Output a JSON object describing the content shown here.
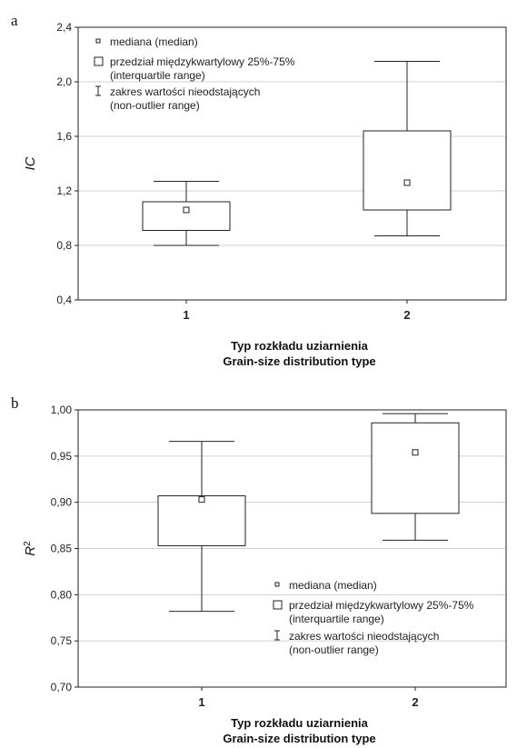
{
  "chart_data": [
    {
      "type": "box",
      "panel_label": "a",
      "ylabel": "IC",
      "xlabel_lines": [
        "Typ rozkładu uziarnienia",
        "Grain-size distribution type"
      ],
      "ylim": [
        0.4,
        2.4
      ],
      "yticks": [
        "0,4",
        "0,8",
        "1,2",
        "1,6",
        "2,0",
        "2,4"
      ],
      "ytick_values": [
        0.4,
        0.8,
        1.2,
        1.6,
        2.0,
        2.4
      ],
      "categories": [
        "1",
        "2"
      ],
      "grid": true,
      "legend_position": "top-left",
      "boxes": [
        {
          "category": "1",
          "median": 1.06,
          "q1": 0.91,
          "q3": 1.12,
          "whisker_low": 0.8,
          "whisker_high": 1.27
        },
        {
          "category": "2",
          "median": 1.26,
          "q1": 1.06,
          "q3": 1.64,
          "whisker_low": 0.87,
          "whisker_high": 2.15
        }
      ],
      "legend": [
        {
          "symbol": "median",
          "lines": [
            "mediana   (median)"
          ]
        },
        {
          "symbol": "box",
          "lines": [
            "przedział międzykwartylowy 25%-75%",
            "(interquartile range)"
          ]
        },
        {
          "symbol": "whisker",
          "lines": [
            "zakres wartości nieodstających",
            "(non-outlier range)"
          ]
        }
      ]
    },
    {
      "type": "box",
      "panel_label": "b",
      "ylabel": "R",
      "ylabel_sup": "2",
      "xlabel_lines": [
        "Typ rozkładu uziarnienia",
        "Grain-size distribution type"
      ],
      "ylim": [
        0.7,
        1.0
      ],
      "yticks": [
        "0,70",
        "0,75",
        "0,80",
        "0,85",
        "0,90",
        "0,95",
        "1,00"
      ],
      "ytick_values": [
        0.7,
        0.75,
        0.8,
        0.85,
        0.9,
        0.95,
        1.0
      ],
      "categories": [
        "1",
        "2"
      ],
      "grid": true,
      "legend_position": "bottom-right",
      "boxes": [
        {
          "category": "1",
          "median": 0.903,
          "q1": 0.853,
          "q3": 0.907,
          "whisker_low": 0.782,
          "whisker_high": 0.966
        },
        {
          "category": "2",
          "median": 0.954,
          "q1": 0.888,
          "q3": 0.986,
          "whisker_low": 0.859,
          "whisker_high": 0.996
        }
      ],
      "legend": [
        {
          "symbol": "median",
          "lines": [
            "mediana  (median)"
          ]
        },
        {
          "symbol": "box",
          "lines": [
            "przedział międzykwartylowy 25%-75%",
            "(interquartile range)"
          ]
        },
        {
          "symbol": "whisker",
          "lines": [
            "zakres wartości nieodstających",
            "(non-outlier range)"
          ]
        }
      ]
    }
  ]
}
